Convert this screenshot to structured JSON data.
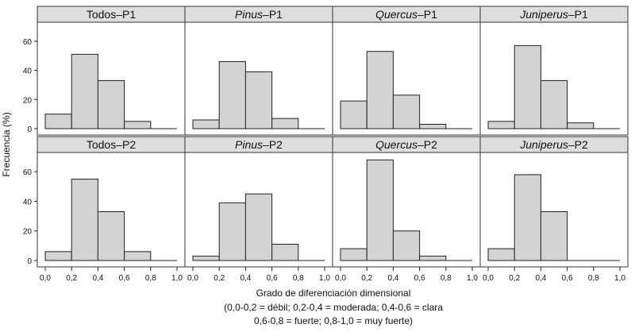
{
  "chart_data": {
    "type": "bar",
    "layout": "faceted histogram grid, 2 rows x 4 columns",
    "ylabel": "Frecuencia (%)",
    "xlabel": "Grado de diferenciación dimensional",
    "caption_lines": [
      "(0,0-0,2 = débil; 0,2-0,4 = moderada; 0,4-0,6 = clara",
      "0,6-0,8 = fuerte; 0,8-1,0 = muy fuerte)"
    ],
    "xlim": [
      0.0,
      1.0
    ],
    "ylim": [
      0,
      73
    ],
    "x_ticks": [
      "0,0",
      "0,2",
      "0,4",
      "0,6",
      "0,8",
      "1,0"
    ],
    "y_ticks": [
      "0",
      "20",
      "40",
      "60"
    ],
    "bin_edges": [
      0.0,
      0.2,
      0.4,
      0.6,
      0.8,
      1.0
    ],
    "bar_color": "#d3d3d3",
    "strip_color": "#dedede",
    "panels": [
      {
        "label_italic": "",
        "label_rest": "Todos–P1",
        "values": [
          10,
          51,
          33,
          5,
          0
        ]
      },
      {
        "label_italic": "Pinus",
        "label_rest": "–P1",
        "values": [
          6,
          46,
          39,
          7,
          0
        ]
      },
      {
        "label_italic": "Quercus",
        "label_rest": "–P1",
        "values": [
          19,
          53,
          23,
          3,
          0
        ]
      },
      {
        "label_italic": "Juniperus",
        "label_rest": "–P1",
        "values": [
          5,
          57,
          33,
          4,
          0
        ]
      },
      {
        "label_italic": "",
        "label_rest": "Todos–P2",
        "values": [
          6,
          55,
          33,
          6,
          0
        ]
      },
      {
        "label_italic": "Pinus",
        "label_rest": "–P2",
        "values": [
          3,
          39,
          45,
          11,
          0
        ]
      },
      {
        "label_italic": "Quercus",
        "label_rest": "–P2",
        "values": [
          8,
          68,
          20,
          3,
          0
        ]
      },
      {
        "label_italic": "Juniperus",
        "label_rest": "–P2",
        "values": [
          8,
          58,
          33,
          0,
          0
        ]
      }
    ]
  }
}
